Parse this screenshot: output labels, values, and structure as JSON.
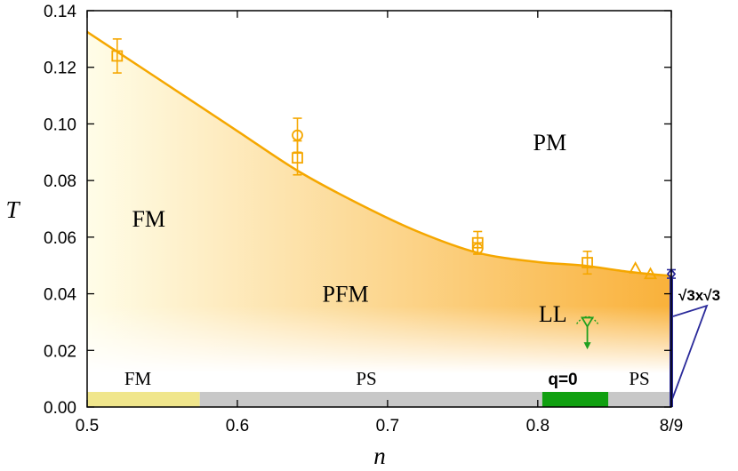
{
  "colors": {
    "curve": "#f5a700",
    "fm_band": "#f0e68c",
    "ps_band": "#c8c8c8",
    "q0_band": "#10a010",
    "green_marker": "#20a020",
    "blue_phase": "#2a2a9a",
    "fill_light": "#fffde8",
    "fill_dark": "#f9b13a"
  },
  "chart_data": {
    "type": "line",
    "title": "",
    "xlabel": "n",
    "ylabel": "T",
    "xlim": [
      0.5,
      0.8889
    ],
    "ylim": [
      0,
      0.14
    ],
    "x_ticks": [
      {
        "value": 0.5,
        "label": "0.5"
      },
      {
        "value": 0.6,
        "label": "0.6"
      },
      {
        "value": 0.7,
        "label": "0.7"
      },
      {
        "value": 0.8,
        "label": "0.8"
      },
      {
        "value": 0.8889,
        "label": "8/9"
      }
    ],
    "y_ticks": [
      {
        "value": 0.0,
        "label": "0.00"
      },
      {
        "value": 0.02,
        "label": "0.02"
      },
      {
        "value": 0.04,
        "label": "0.04"
      },
      {
        "value": 0.06,
        "label": "0.06"
      },
      {
        "value": 0.08,
        "label": "0.08"
      },
      {
        "value": 0.1,
        "label": "0.10"
      },
      {
        "value": 0.12,
        "label": "0.12"
      },
      {
        "value": 0.14,
        "label": "0.14"
      }
    ],
    "grid": false,
    "legend": "none",
    "boundary_curve": {
      "x": [
        0.5,
        0.52,
        0.56,
        0.6,
        0.64,
        0.68,
        0.72,
        0.76,
        0.8,
        0.83,
        0.86,
        0.8889
      ],
      "y": [
        0.1325,
        0.1255,
        0.1115,
        0.0975,
        0.0835,
        0.072,
        0.062,
        0.0545,
        0.0512,
        0.05,
        0.0478,
        0.0463
      ]
    },
    "series": [
      {
        "marker": "square",
        "x": [
          0.52,
          0.64,
          0.76,
          0.833
        ],
        "y": [
          0.124,
          0.088,
          0.058,
          0.051
        ],
        "yerr": [
          0.006,
          0.006,
          0.004,
          0.004
        ]
      },
      {
        "marker": "circle",
        "x": [
          0.64,
          0.76
        ],
        "y": [
          0.096,
          0.056
        ],
        "yerr": [
          0.006,
          0.002
        ]
      },
      {
        "marker": "triangle-up",
        "x": [
          0.865,
          0.875
        ],
        "y": [
          0.049,
          0.047
        ],
        "yerr": [
          0.0,
          0.0
        ]
      },
      {
        "marker": "diamond",
        "x": [
          0.8889
        ],
        "y": [
          0.047
        ],
        "yerr": [
          0.0015
        ]
      }
    ],
    "green_marker": {
      "x": 0.833,
      "y": 0.03,
      "y_arrow_to": 0.021
    },
    "region_labels": [
      {
        "text": "PM",
        "x": 0.808,
        "y": 0.0935
      },
      {
        "text": "FM",
        "x": 0.541,
        "y": 0.0665
      },
      {
        "text": "PFM",
        "x": 0.672,
        "y": 0.04
      },
      {
        "text": "LL",
        "x": 0.81,
        "y": 0.033
      }
    ],
    "ground_state_bands": [
      {
        "label": "FM",
        "x_start": 0.5,
        "x_end": 0.575,
        "color_key": "fm_band"
      },
      {
        "label": "PS",
        "x_start": 0.575,
        "x_end": 0.803,
        "color_key": "ps_band"
      },
      {
        "label": "q=0",
        "x_start": 0.803,
        "x_end": 0.847,
        "color_key": "q0_band"
      },
      {
        "label": "PS",
        "x_start": 0.847,
        "x_end": 0.8889,
        "color_key": "ps_band"
      }
    ],
    "band_labels": [
      "FM",
      "PS",
      "q=0",
      "PS"
    ],
    "sqrt3_phase": {
      "label": "√3x√3",
      "x": 0.8889,
      "y_top": 0.0463
    }
  }
}
